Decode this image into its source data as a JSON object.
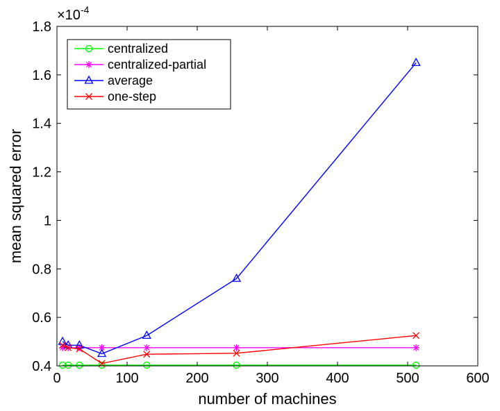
{
  "chart_data": {
    "type": "line",
    "title": "",
    "xlabel": "number of machines",
    "ylabel": "mean squared error",
    "y_multiplier": "×10",
    "y_exponent": "-4",
    "xlim": [
      0,
      600
    ],
    "ylim": [
      0.4,
      1.8
    ],
    "xticks": [
      0,
      100,
      200,
      300,
      400,
      500,
      600
    ],
    "yticks": [
      0.4,
      0.6,
      0.8,
      1,
      1.2,
      1.4,
      1.6,
      1.8
    ],
    "xtick_labels": [
      "0",
      "100",
      "200",
      "300",
      "400",
      "500",
      "600"
    ],
    "ytick_labels": [
      "0.4",
      "0.6",
      "0.8",
      "1",
      "1.2",
      "1.4",
      "1.6",
      "1.8"
    ],
    "grid": false,
    "legend_position": "top-left",
    "x": [
      8,
      16,
      32,
      64,
      128,
      256,
      512
    ],
    "series": [
      {
        "name": "centralized",
        "color": "#00ff00",
        "marker": "circle",
        "values": [
          0.403,
          0.403,
          0.403,
          0.403,
          0.403,
          0.403,
          0.403
        ]
      },
      {
        "name": "centralized-partial",
        "color": "#ff00ff",
        "marker": "star",
        "values": [
          0.475,
          0.475,
          0.475,
          0.475,
          0.475,
          0.475,
          0.475
        ]
      },
      {
        "name": "average",
        "color": "#0000ff",
        "marker": "triangle",
        "values": [
          0.5,
          0.485,
          0.485,
          0.45,
          0.525,
          0.76,
          1.65
        ]
      },
      {
        "name": "one-step",
        "color": "#ff0000",
        "marker": "x",
        "values": [
          0.485,
          0.475,
          0.47,
          0.41,
          0.448,
          0.452,
          0.525
        ]
      }
    ]
  }
}
